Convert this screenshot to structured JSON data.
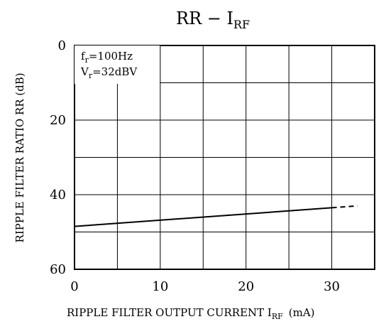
{
  "chart_data": {
    "type": "line",
    "title": {
      "main": "RR  −  I",
      "sub": "RF"
    },
    "xlabel": {
      "main": "RIPPLE FILTER OUTPUT CURRENT I",
      "sub": "RF",
      "unit": "(mA)"
    },
    "ylabel": "RIPPLE FILTER RATIO RR (dB)",
    "xlim": [
      0,
      35
    ],
    "ylim": [
      0,
      60
    ],
    "y_inverted": true,
    "x_ticks": [
      "0",
      "10",
      "20",
      "30"
    ],
    "y_ticks": [
      "0",
      "20",
      "40",
      "60"
    ],
    "grid": true,
    "annotations": [
      {
        "var": "f",
        "sub": "r",
        "value": "=100Hz"
      },
      {
        "var": "V",
        "sub": "r",
        "value": "=32dBV"
      }
    ],
    "series": [
      {
        "style": "solid",
        "x": [
          0,
          30
        ],
        "y": [
          48.5,
          43.5
        ]
      },
      {
        "style": "dashed",
        "x": [
          30,
          33
        ],
        "y": [
          43.5,
          43.0
        ]
      }
    ]
  }
}
